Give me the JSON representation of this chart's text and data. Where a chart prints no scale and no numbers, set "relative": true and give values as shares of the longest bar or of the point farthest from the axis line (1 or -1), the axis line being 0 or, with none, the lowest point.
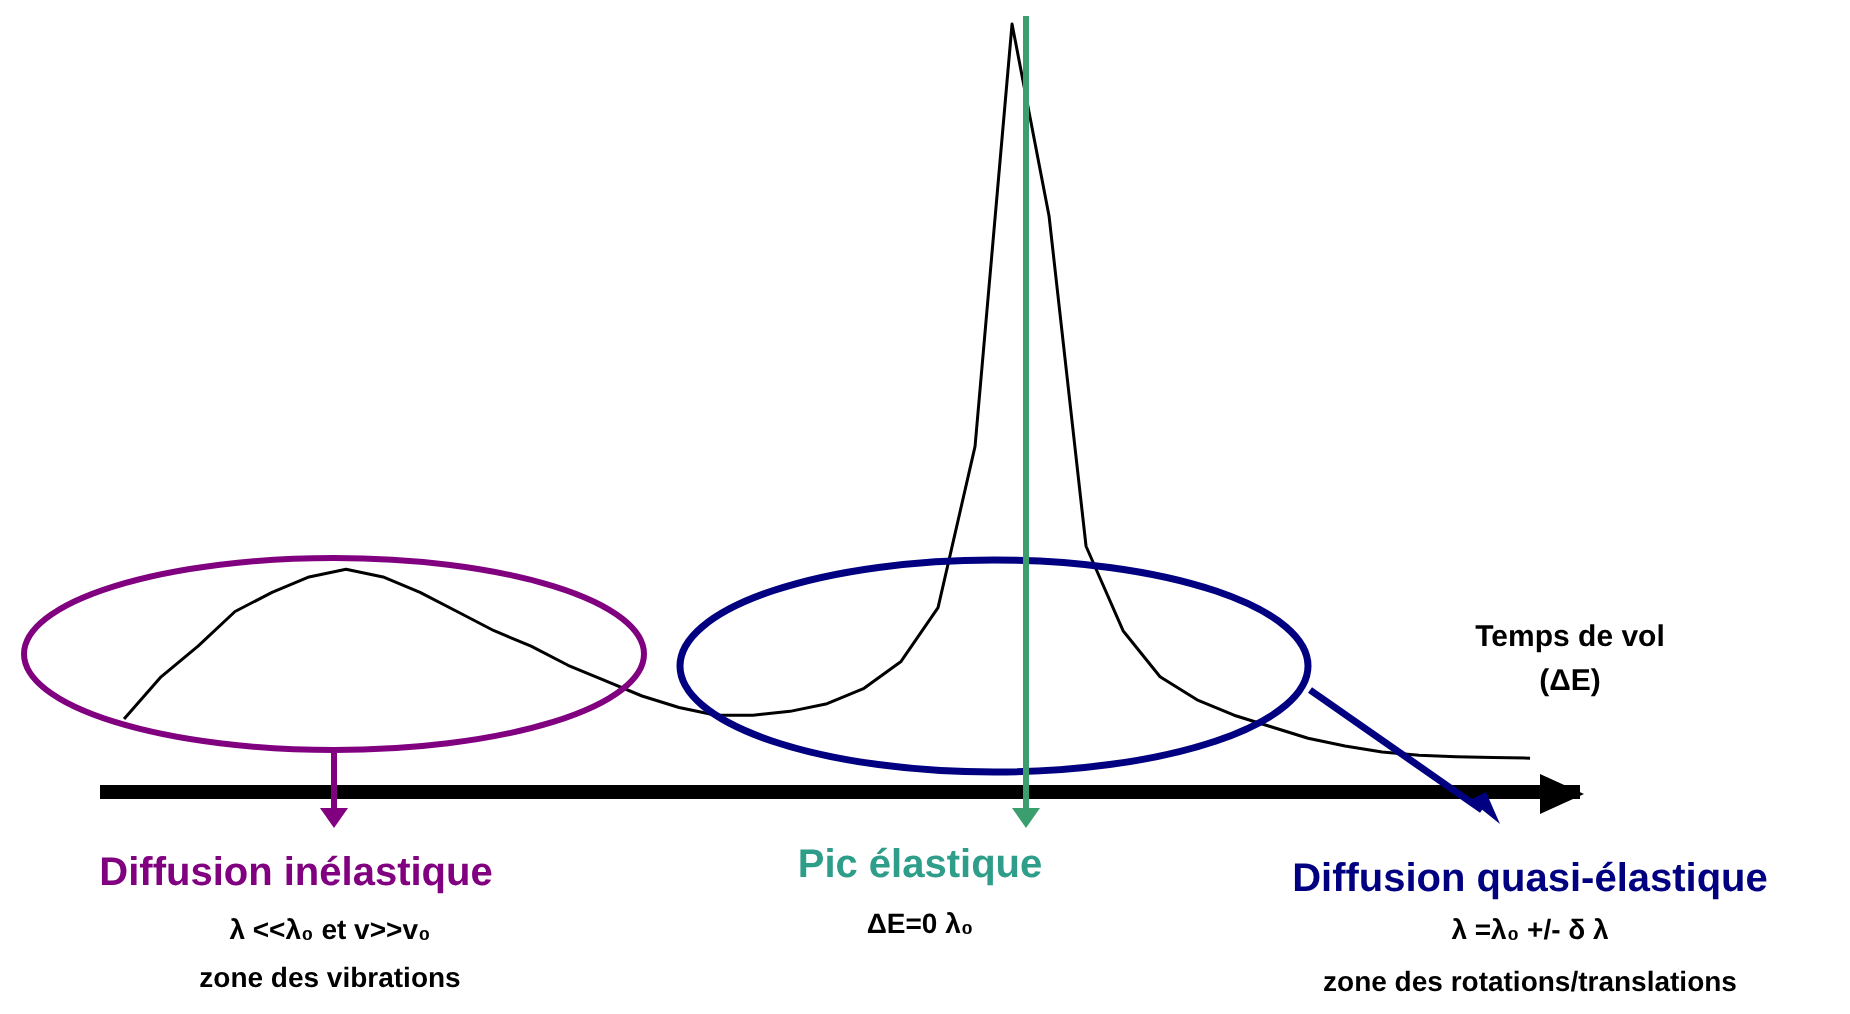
{
  "chart_data": {
    "type": "line",
    "relative": true,
    "xlabel": "Temps de vol (ΔE)",
    "color": "#000000",
    "marker": "none",
    "categories": [
      null,
      null,
      null,
      null,
      null,
      null,
      null,
      null,
      null,
      null,
      null,
      null,
      null,
      null,
      null,
      null,
      null,
      null,
      null,
      null,
      null,
      null,
      null,
      null,
      null,
      null,
      null,
      null,
      null,
      null,
      null,
      null,
      null,
      null,
      null,
      null,
      null,
      null,
      null
    ],
    "values": [
      0.095,
      0.15,
      0.19,
      0.235,
      0.26,
      0.28,
      0.29,
      0.28,
      0.26,
      0.235,
      0.21,
      0.19,
      0.165,
      0.145,
      0.125,
      0.11,
      0.1,
      0.1,
      0.105,
      0.115,
      0.135,
      0.17,
      0.24,
      0.45,
      1,
      0.75,
      0.32,
      0.21,
      0.15,
      0.12,
      0.1,
      0.085,
      0.07,
      0.06,
      0.052,
      0.048,
      0.046,
      0.045,
      0.044
    ],
    "annotations": [
      "Diffusion inélastique",
      "λ <<λ₀ et v>>v₀",
      "zone des vibrations",
      "Pic élastique",
      "ΔE=0 λ₀",
      "Diffusion quasi-élastique",
      "λ =λ₀ +/- δ λ",
      "zone des rotations/translations"
    ]
  }
}
